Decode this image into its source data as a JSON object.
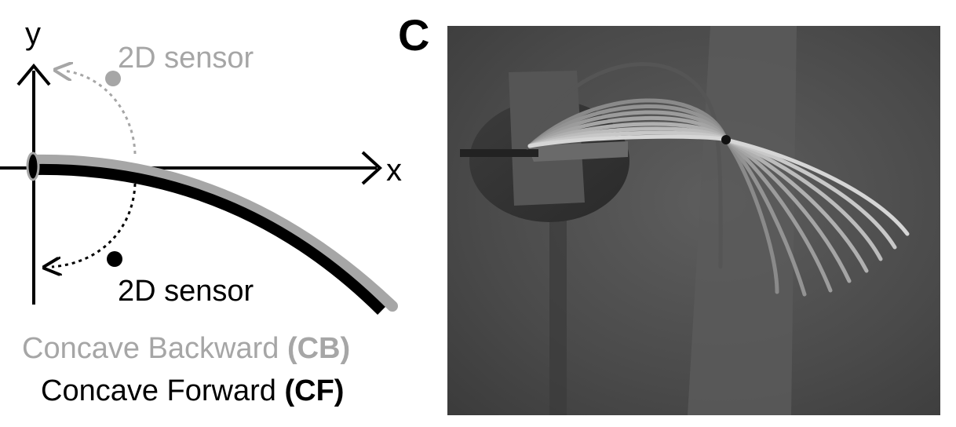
{
  "diagram": {
    "axis_x_label": "x",
    "axis_y_label": "y",
    "sensor_top_label": "2D sensor",
    "sensor_bottom_label": "2D sensor",
    "legend_cb_text": "Concave Backward ",
    "legend_cb_abbr": "(CB)",
    "legend_cf_text": "Concave Forward ",
    "legend_cf_abbr": "(CF)"
  },
  "photo_panel": {
    "label": "C"
  },
  "colors": {
    "cb_gray": "#a6a6a6",
    "cf_black": "#000000",
    "photo_bg": "#4d4d4d"
  }
}
